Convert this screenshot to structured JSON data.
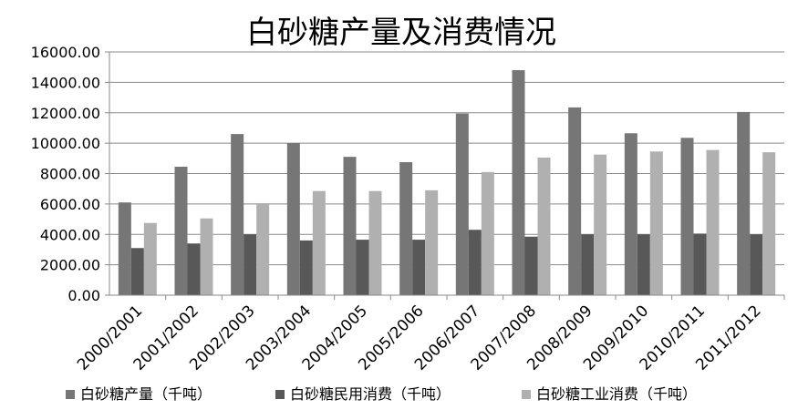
{
  "chart_data": {
    "type": "bar",
    "title": "白砂糖产量及消费情况",
    "xlabel": "",
    "ylabel": "",
    "ylim": [
      0,
      16000
    ],
    "yticks": [
      0,
      2000,
      4000,
      6000,
      8000,
      10000,
      12000,
      14000,
      16000
    ],
    "ytick_labels": [
      "0.00",
      "2000.00",
      "4000.00",
      "6000.00",
      "8000.00",
      "10000.00",
      "12000.00",
      "14000.00",
      "16000.00"
    ],
    "grid": true,
    "legend_position": "bottom",
    "categories": [
      "2000/2001",
      "2001/2002",
      "2002/2003",
      "2003/2004",
      "2004/2005",
      "2005/2006",
      "2006/2007",
      "2007/2008",
      "2008/2009",
      "2009/2010",
      "2010/2011",
      "2011/2012"
    ],
    "series": [
      {
        "name": "白砂糖产量（千吨）",
        "color": "#767676",
        "values": [
          6100,
          8450,
          10600,
          10000,
          9100,
          8750,
          11950,
          14800,
          12350,
          10650,
          10350,
          12050
        ]
      },
      {
        "name": "白砂糖民用消费（千吨）",
        "color": "#585858",
        "values": [
          3100,
          3400,
          4000,
          3600,
          3650,
          3650,
          4300,
          3850,
          4000,
          4000,
          4050,
          4000
        ]
      },
      {
        "name": "白砂糖工业消费（千吨）",
        "color": "#b0b0b0",
        "values": [
          4750,
          5050,
          6050,
          6850,
          6850,
          6900,
          8100,
          9050,
          9250,
          9450,
          9550,
          9400
        ]
      }
    ]
  }
}
